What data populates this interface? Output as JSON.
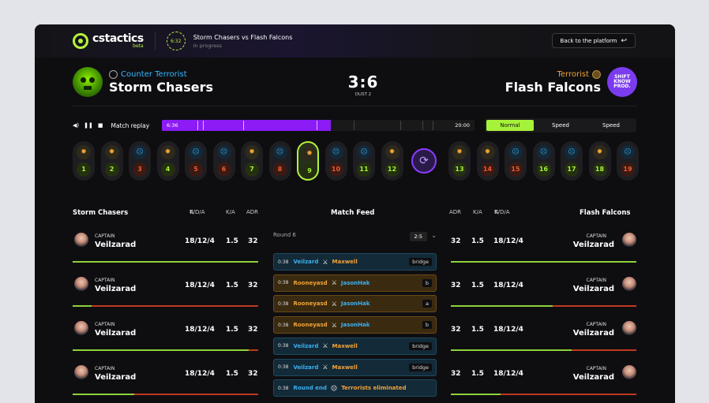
{
  "topbar": {
    "logo_text": "cstactics",
    "logo_beta": "beta",
    "timer": "6:32",
    "match_title": "Storm Chasers vs Flash Falcons",
    "match_status": "In progress",
    "back_label": "Back to the platform",
    "back_icon": "↩"
  },
  "scoreboard": {
    "left": {
      "side": "Counter Terrorist",
      "name": "Storm Chasers"
    },
    "score": "3:6",
    "map": "DUST 2",
    "right": {
      "side": "Terrorist",
      "name": "Flash Falcons",
      "logo_text": "SHIFT KNOW PROD."
    }
  },
  "replay": {
    "label": "Match replay",
    "start_time": "6:36",
    "end_time": "20:00",
    "progress": 0.54,
    "speeds": [
      "Normal",
      "Speed",
      "Speed"
    ],
    "active_speed": 0
  },
  "rounds": [
    {
      "num": "1",
      "side": "t",
      "result": "g"
    },
    {
      "num": "2",
      "side": "t",
      "result": "g"
    },
    {
      "num": "3",
      "side": "ct",
      "result": "r"
    },
    {
      "num": "4",
      "side": "t",
      "result": "g"
    },
    {
      "num": "5",
      "side": "ct",
      "result": "r"
    },
    {
      "num": "6",
      "side": "ct",
      "result": "r"
    },
    {
      "num": "7",
      "side": "t",
      "result": "g"
    },
    {
      "num": "8",
      "side": "ct",
      "result": "r"
    },
    {
      "num": "9",
      "side": "t",
      "result": "g",
      "selected": true
    },
    {
      "num": "10",
      "side": "ct",
      "result": "r"
    },
    {
      "num": "11",
      "side": "ct",
      "result": "g"
    },
    {
      "num": "12",
      "side": "t",
      "result": "g"
    },
    {
      "num": "13",
      "side": "t",
      "result": "g"
    },
    {
      "num": "14",
      "side": "t",
      "result": "r"
    },
    {
      "num": "15",
      "side": "ct",
      "result": "r"
    },
    {
      "num": "16",
      "side": "ct",
      "result": "g"
    },
    {
      "num": "17",
      "side": "ct",
      "result": "g"
    },
    {
      "num": "18",
      "side": "t",
      "result": "g"
    },
    {
      "num": "19",
      "side": "ct",
      "result": "r"
    }
  ],
  "stats_header": {
    "left_team": "Storm Chasers",
    "kda": "K/D/A",
    "ka": "K/A",
    "adr": "ADR",
    "feed_title": "Match Feed",
    "right_team": "Flash Falcons"
  },
  "left_players": [
    {
      "role": "CAPTAIN",
      "name": "Veilzarad",
      "kda": "18/12/4",
      "ka": "1.5",
      "adr": "32",
      "health": 1.0
    },
    {
      "role": "CAPTAIN",
      "name": "Veilzarad",
      "kda": "18/12/4",
      "ka": "1.5",
      "adr": "32",
      "health": 0.1
    },
    {
      "role": "CAPTAIN",
      "name": "Veilzarad",
      "kda": "18/12/4",
      "ka": "1.5",
      "adr": "32",
      "health": 0.95
    },
    {
      "role": "CAPTAIN",
      "name": "Veilzarad",
      "kda": "18/12/4",
      "ka": "1.5",
      "adr": "32",
      "health": 0.33
    }
  ],
  "right_players": [
    {
      "role": "CAPTAIN",
      "name": "Veilzarad",
      "kda": "18/12/4",
      "ka": "1.5",
      "adr": "32",
      "health": 1.0
    },
    {
      "role": "CAPTAIN",
      "name": "Veilzarad",
      "kda": "18/12/4",
      "ka": "1.5",
      "adr": "32",
      "health": 0.55
    },
    {
      "role": "CAPTAIN",
      "name": "Veilzarad",
      "kda": "18/12/4",
      "ka": "1.5",
      "adr": "32",
      "health": 0.65
    },
    {
      "role": "CAPTAIN",
      "name": "Veilzarad",
      "kda": "18/12/4",
      "ka": "1.5",
      "adr": "32",
      "health": 0.27
    }
  ],
  "feed": {
    "round_label": "Round 6",
    "round_score": "2:5",
    "items": [
      {
        "time": "0:38",
        "a": "Veilzard",
        "a_side": "ct",
        "b": "Maxwell",
        "b_side": "tt",
        "tag": "bridge",
        "kind": "ct"
      },
      {
        "time": "0:38",
        "a": "Rooneyasd",
        "a_side": "tt",
        "b": "JasonHak",
        "b_side": "ct",
        "tag": "b",
        "kind": "tt"
      },
      {
        "time": "0:38",
        "a": "Rooneyasd",
        "a_side": "tt",
        "b": "JasonHak",
        "b_side": "ct",
        "tag": "a",
        "kind": "tt"
      },
      {
        "time": "0:38",
        "a": "Rooneyasd",
        "a_side": "tt",
        "b": "JasonHak",
        "b_side": "ct",
        "tag": "b",
        "kind": "tt"
      },
      {
        "time": "0:38",
        "a": "Veilzard",
        "a_side": "ct",
        "b": "Maxwell",
        "b_side": "tt",
        "tag": "bridge",
        "kind": "ct"
      },
      {
        "time": "0:38",
        "a": "Veilzard",
        "a_side": "ct",
        "b": "Maxwell",
        "b_side": "tt",
        "tag": "bridge",
        "kind": "ct"
      },
      {
        "time": "0:38",
        "a": "Round end",
        "a_side": "ct",
        "b": "Terrorists eliminated",
        "b_side": "tt",
        "tag": "",
        "kind": "ct"
      }
    ]
  },
  "colors": {
    "accent": "#b5f23d",
    "purple": "#8c1bf5",
    "ct": "#35b9ff",
    "t": "#f0a33a",
    "loss": "#f05a2e"
  }
}
